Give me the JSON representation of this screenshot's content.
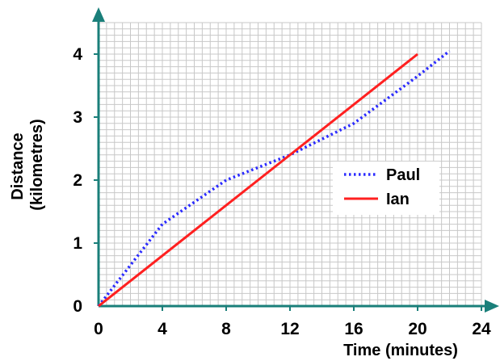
{
  "chart_data": {
    "type": "line",
    "title": "",
    "xlabel": "Time (minutes)",
    "ylabel_line1": "Distance",
    "ylabel_line2": "(kilometres)",
    "xlim": [
      0,
      24
    ],
    "ylim": [
      0,
      4.5
    ],
    "x_ticks": [
      "0",
      "4",
      "8",
      "12",
      "16",
      "20",
      "24"
    ],
    "y_ticks": [
      "0",
      "1",
      "2",
      "3",
      "4"
    ],
    "grid": true,
    "legend_position": "right-center",
    "axis_color": "#1a7f7a",
    "grid_color": "#c8c8c8",
    "series": [
      {
        "name": "Paul",
        "color": "#2b2bff",
        "style": "dotted",
        "x": [
          0,
          4,
          8,
          12,
          16,
          20,
          22
        ],
        "y": [
          0,
          1.3,
          2.0,
          2.4,
          2.9,
          3.65,
          4.05
        ]
      },
      {
        "name": "Ian",
        "color": "#ff2020",
        "style": "solid",
        "x": [
          0,
          20
        ],
        "y": [
          0,
          4.0
        ]
      }
    ]
  }
}
